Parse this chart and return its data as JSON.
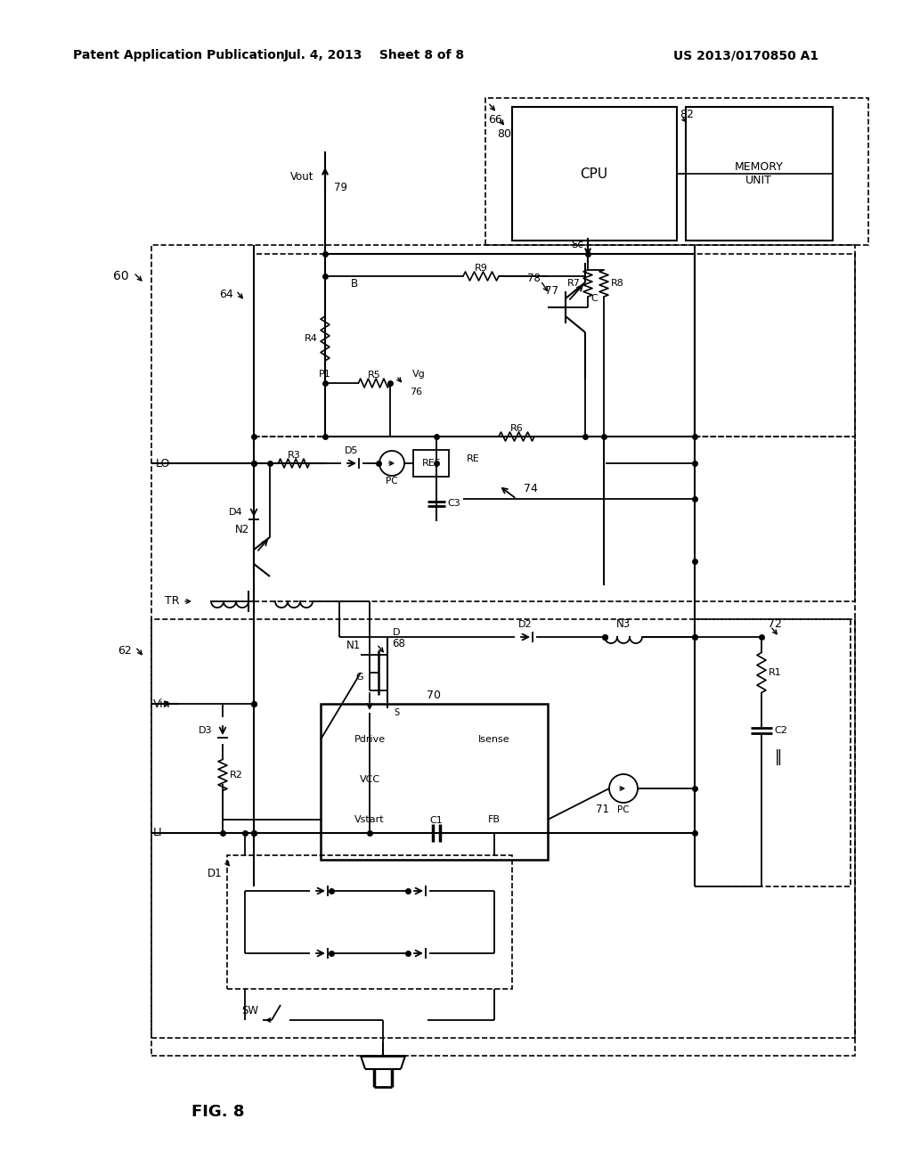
{
  "bg": "#ffffff",
  "lc": "#000000",
  "header_left": "Patent Application Publication",
  "header_mid": "Jul. 4, 2013    Sheet 8 of 8",
  "header_right": "US 2013/0170850 A1",
  "fig_label": "FIG. 8"
}
